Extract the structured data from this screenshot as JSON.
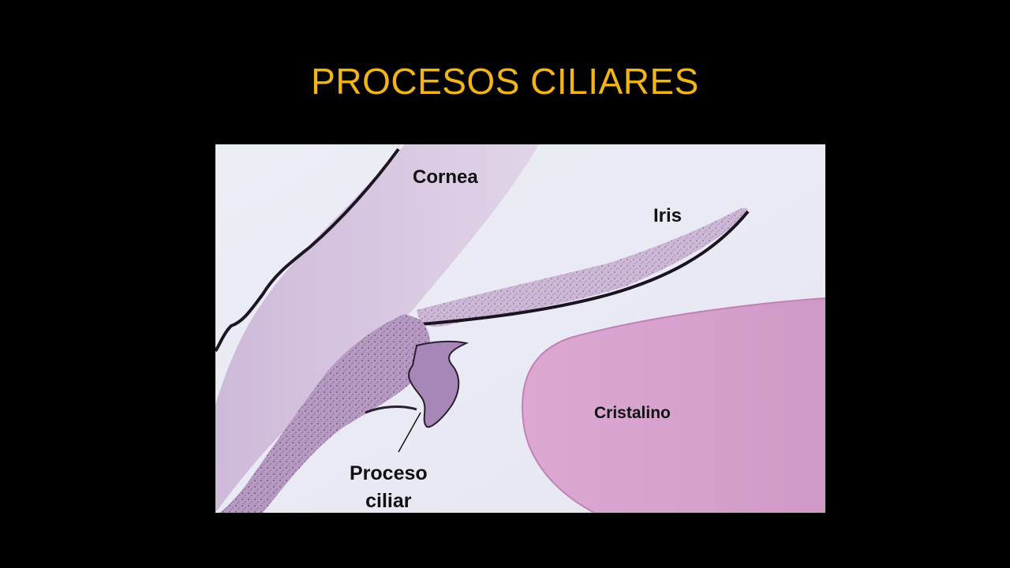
{
  "slide": {
    "title": "PROCESOS CILIARES",
    "title_color": "#f2b418",
    "background_color": "#000000"
  },
  "micrograph": {
    "labels": {
      "cornea": "Cornea",
      "iris": "Iris",
      "cristalino": "Cristalino",
      "proceso_line1": "Proceso",
      "proceso_line2": "ciliar"
    },
    "colors": {
      "background": "#e9eaf3",
      "tissue_light": "#d9c9e2",
      "tissue_mid": "#c4a8cf",
      "tissue_dark": "#2a1f2e",
      "lens": "#d9a4cf"
    }
  }
}
